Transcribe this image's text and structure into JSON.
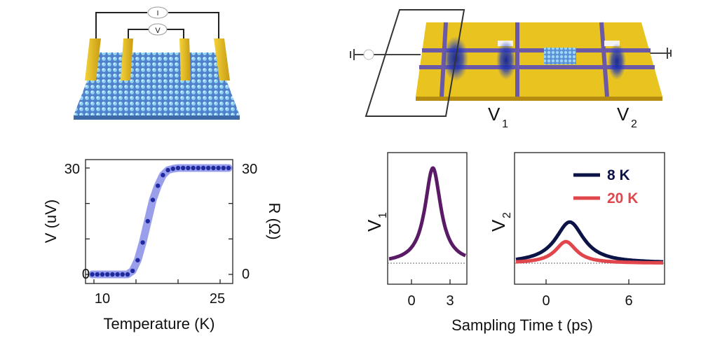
{
  "colors": {
    "gold": "#e8c21e",
    "gold_dark": "#b8920f",
    "substrate": "#5f8fd6",
    "purple_line": "#6a5aa8",
    "pulse_blue": "#1c2fa8",
    "curve_v1": "#5a1a66",
    "curve_8k": "#0c1347",
    "curve_20k": "#e0464b",
    "data_blue": "#1f2aa0",
    "band_blue": "#8f95ea"
  },
  "top_left_device": {
    "meter_current": "I",
    "meter_voltage": "V"
  },
  "top_right_device": {
    "probe_v1": "V",
    "probe_v1_sub": "1",
    "probe_v2": "V",
    "probe_v2_sub": "2"
  },
  "chart_data": [
    {
      "type": "scatter",
      "xlabel": "Temperature (K)",
      "ylabel": "V (uV)",
      "ylabel_right": "R (Ω)",
      "xlim": [
        9,
        26.5
      ],
      "ylim": [
        0,
        30
      ],
      "x_ticks": [
        "10",
        "25"
      ],
      "y_ticks_left": [
        "0",
        "30"
      ],
      "y_ticks_right": [
        "0",
        "30"
      ],
      "series": [
        {
          "x": [
            9.8,
            10.4,
            11.0,
            11.6,
            12.2,
            12.8,
            13.4,
            14.0,
            14.6,
            15.2,
            15.8,
            16.4,
            17.0,
            17.6,
            18.2,
            18.8,
            19.4,
            20.0,
            20.6,
            21.2,
            21.8,
            22.4,
            23.0,
            23.6,
            24.2,
            24.8,
            25.4,
            26.0
          ],
          "values": [
            0,
            0,
            0,
            0,
            0,
            0,
            0,
            0,
            1,
            4,
            9,
            15,
            21,
            25,
            28,
            29.4,
            29.8,
            30,
            30,
            30,
            30,
            30,
            30,
            30,
            30,
            30,
            30,
            30
          ]
        }
      ]
    },
    {
      "type": "line",
      "xlabel": "Sampling Time t (ps)",
      "ylabel": "V1",
      "ylabel_sub": "1",
      "xlim": [
        -2.3,
        4.5
      ],
      "x_ticks": [
        "0",
        "3"
      ],
      "series": [
        {
          "t_peak": 1.6,
          "amplitude": 1.0,
          "width": 0.85
        }
      ]
    },
    {
      "type": "line",
      "xlabel": "Sampling Time t (ps)",
      "ylabel": "V2",
      "ylabel_sub": "2",
      "xlim": [
        -2.5,
        9
      ],
      "x_ticks": [
        "0",
        "6"
      ],
      "series": [
        {
          "name": "8 K",
          "t_peak": 1.7,
          "amplitude": 0.42,
          "width": 1.35
        },
        {
          "name": "20 K",
          "t_peak": 1.4,
          "amplitude": 0.22,
          "width": 1.0
        }
      ]
    }
  ]
}
